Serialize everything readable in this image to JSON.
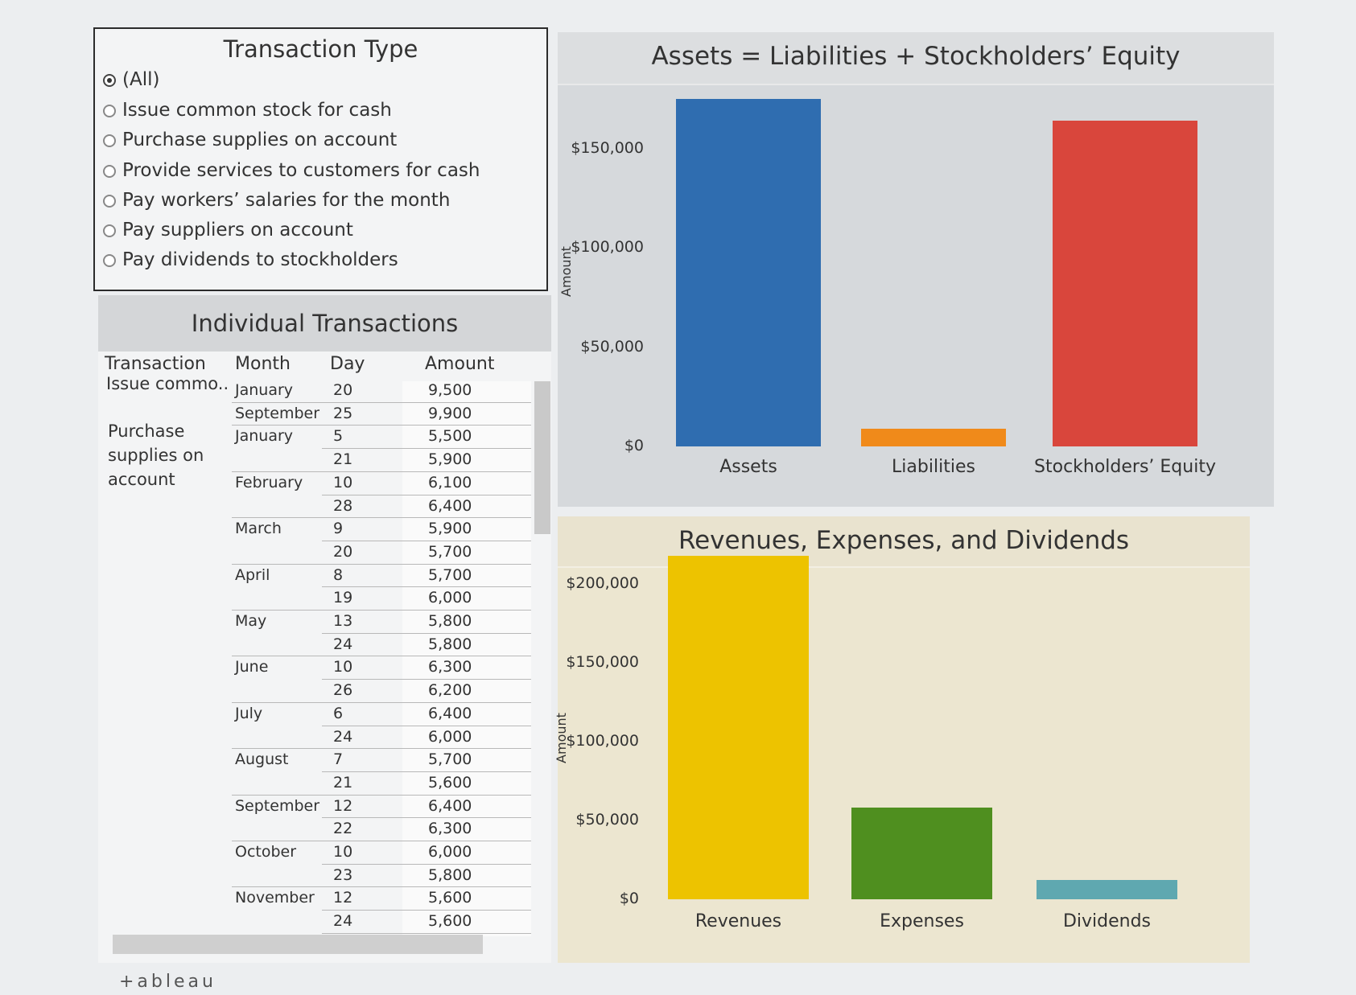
{
  "filter": {
    "title": "Transaction Type",
    "options": [
      {
        "label": "(All)",
        "selected": true
      },
      {
        "label": "Issue common stock for cash",
        "selected": false
      },
      {
        "label": "Purchase supplies on account",
        "selected": false
      },
      {
        "label": "Provide services to customers for cash",
        "selected": false
      },
      {
        "label": "Pay workers’ salaries for the month",
        "selected": false
      },
      {
        "label": "Pay suppliers on account",
        "selected": false
      },
      {
        "label": "Pay dividends to stockholders",
        "selected": false
      }
    ]
  },
  "transactions": {
    "title": "Individual Transactions",
    "headers": {
      "transaction": "Transaction",
      "month": "Month",
      "day": "Day",
      "amount": "Amount"
    },
    "groups": {
      "g1": "Issue commo..",
      "g2_l1": "Purchase",
      "g2_l2": "supplies on",
      "g2_l3": "account"
    },
    "rows": [
      {
        "month": "January",
        "day": "20",
        "amount": "9,500"
      },
      {
        "month": "September",
        "day": "25",
        "amount": "9,900"
      },
      {
        "month": "January",
        "day": "5",
        "amount": "5,500"
      },
      {
        "month": "",
        "day": "21",
        "amount": "5,900"
      },
      {
        "month": "February",
        "day": "10",
        "amount": "6,100"
      },
      {
        "month": "",
        "day": "28",
        "amount": "6,400"
      },
      {
        "month": "March",
        "day": "9",
        "amount": "5,900"
      },
      {
        "month": "",
        "day": "20",
        "amount": "5,700"
      },
      {
        "month": "April",
        "day": "8",
        "amount": "5,700"
      },
      {
        "month": "",
        "day": "19",
        "amount": "6,000"
      },
      {
        "month": "May",
        "day": "13",
        "amount": "5,800"
      },
      {
        "month": "",
        "day": "24",
        "amount": "5,800"
      },
      {
        "month": "June",
        "day": "10",
        "amount": "6,300"
      },
      {
        "month": "",
        "day": "26",
        "amount": "6,200"
      },
      {
        "month": "July",
        "day": "6",
        "amount": "6,400"
      },
      {
        "month": "",
        "day": "24",
        "amount": "6,000"
      },
      {
        "month": "August",
        "day": "7",
        "amount": "5,700"
      },
      {
        "month": "",
        "day": "21",
        "amount": "5,600"
      },
      {
        "month": "September",
        "day": "12",
        "amount": "6,400"
      },
      {
        "month": "",
        "day": "22",
        "amount": "6,300"
      },
      {
        "month": "October",
        "day": "10",
        "amount": "6,000"
      },
      {
        "month": "",
        "day": "23",
        "amount": "5,800"
      },
      {
        "month": "November",
        "day": "12",
        "amount": "5,600"
      },
      {
        "month": "",
        "day": "24",
        "amount": "5,600"
      }
    ]
  },
  "chart_data": [
    {
      "type": "bar",
      "title": "Assets = Liabilities + Stockholders’ Equity",
      "ylabel": "Amount",
      "categories": [
        "Assets",
        "Liabilities",
        "Stockholders’ Equity"
      ],
      "values": [
        175000,
        9000,
        164000
      ],
      "colors": [
        "#2f6db0",
        "#f08a1a",
        "#d9463c"
      ],
      "ticks": [
        {
          "v": 0,
          "label": "$0"
        },
        {
          "v": 50000,
          "label": "$50,000"
        },
        {
          "v": 100000,
          "label": "$100,000"
        },
        {
          "v": 150000,
          "label": "$150,000"
        }
      ],
      "background": "#d6d9dc",
      "ylim": [
        0,
        175000
      ]
    },
    {
      "type": "bar",
      "title": "Revenues, Expenses, and Dividends",
      "ylabel": "Amount",
      "categories": [
        "Revenues",
        "Expenses",
        "Dividends"
      ],
      "values": [
        218000,
        58000,
        12000
      ],
      "colors": [
        "#edc300",
        "#4f8f1f",
        "#5fa8b0"
      ],
      "ticks": [
        {
          "v": 0,
          "label": "$0"
        },
        {
          "v": 50000,
          "label": "$50,000"
        },
        {
          "v": 100000,
          "label": "$100,000"
        },
        {
          "v": 150000,
          "label": "$150,000"
        },
        {
          "v": 200000,
          "label": "$200,000"
        }
      ],
      "background": "#ece6d0",
      "ylim": [
        0,
        218000
      ]
    }
  ],
  "branding": {
    "logo": "+ableau"
  }
}
